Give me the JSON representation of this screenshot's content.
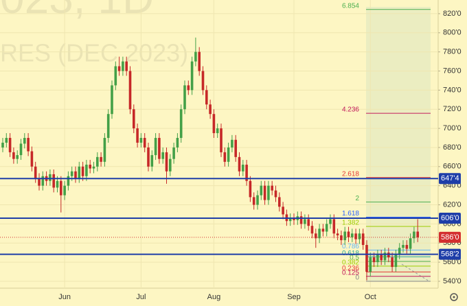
{
  "chart_data": {
    "type": "candlestick",
    "watermark": [
      "023, 1D",
      "RES (DEC 2023)"
    ],
    "categories": [
      null,
      null,
      null,
      null,
      null,
      null,
      null,
      null,
      null,
      null,
      null,
      null,
      null,
      null,
      null,
      null,
      null,
      "Jun",
      null,
      null,
      null,
      null,
      null,
      null,
      null,
      null,
      null,
      null,
      null,
      null,
      null,
      null,
      null,
      null,
      null,
      null,
      null,
      null,
      "Jul",
      null,
      null,
      null,
      null,
      null,
      null,
      null,
      null,
      null,
      null,
      null,
      null,
      null,
      null,
      null,
      null,
      null,
      null,
      null,
      "Aug",
      null,
      null,
      null,
      null,
      null,
      null,
      null,
      null,
      null,
      null,
      null,
      null,
      null,
      null,
      null,
      null,
      null,
      null,
      null,
      null,
      null,
      "Sep",
      null,
      null,
      null,
      null,
      null,
      null,
      null,
      null,
      null,
      null,
      null,
      null,
      null,
      null,
      null,
      null,
      null,
      null,
      null,
      null,
      "Oct",
      null,
      null,
      null,
      null,
      null,
      null,
      null,
      null,
      null,
      null,
      null,
      null,
      null
    ],
    "open": [
      680,
      685,
      690,
      675,
      668,
      672,
      684,
      690,
      676,
      660,
      648,
      640,
      650,
      645,
      652,
      638,
      645,
      630,
      640,
      650,
      655,
      648,
      660,
      650,
      662,
      658,
      660,
      670,
      665,
      690,
      715,
      745,
      765,
      760,
      770,
      760,
      720,
      700,
      685,
      690,
      680,
      660,
      672,
      690,
      668,
      675,
      655,
      668,
      680,
      690,
      720,
      745,
      740,
      770,
      780,
      760,
      740,
      725,
      715,
      695,
      700,
      675,
      665,
      680,
      688,
      670,
      655,
      662,
      645,
      628,
      620,
      630,
      640,
      625,
      640,
      635,
      628,
      618,
      610,
      603,
      606,
      604,
      608,
      600,
      605,
      598,
      590,
      585,
      595,
      592,
      600,
      605,
      590,
      588,
      583,
      592,
      586,
      590,
      584,
      590,
      578,
      550,
      565,
      560,
      568,
      562,
      570,
      565,
      555,
      568,
      575,
      578,
      574,
      585,
      592
    ],
    "high": [
      690,
      695,
      695,
      680,
      677,
      689,
      695,
      695,
      681,
      665,
      653,
      655,
      655,
      657,
      657,
      650,
      650,
      645,
      655,
      660,
      660,
      665,
      665,
      667,
      667,
      665,
      675,
      675,
      695,
      720,
      750,
      770,
      775,
      775,
      775,
      765,
      725,
      705,
      695,
      695,
      685,
      677,
      695,
      695,
      680,
      680,
      673,
      685,
      695,
      725,
      750,
      750,
      775,
      795,
      785,
      765,
      745,
      730,
      720,
      705,
      705,
      680,
      685,
      693,
      693,
      675,
      667,
      667,
      650,
      633,
      635,
      645,
      645,
      645,
      645,
      640,
      633,
      623,
      615,
      611,
      611,
      613,
      613,
      610,
      610,
      603,
      595,
      600,
      600,
      605,
      610,
      610,
      595,
      593,
      597,
      597,
      595,
      595,
      595,
      595,
      583,
      570,
      570,
      573,
      573,
      575,
      575,
      570,
      573,
      580,
      583,
      583,
      590,
      597,
      605
    ],
    "low": [
      675,
      680,
      670,
      663,
      663,
      667,
      679,
      671,
      655,
      643,
      635,
      635,
      640,
      640,
      633,
      633,
      612,
      625,
      635,
      645,
      643,
      643,
      645,
      645,
      653,
      653,
      655,
      660,
      660,
      685,
      710,
      740,
      755,
      755,
      755,
      715,
      695,
      680,
      680,
      675,
      655,
      655,
      667,
      663,
      663,
      642,
      650,
      663,
      675,
      685,
      715,
      735,
      735,
      765,
      755,
      735,
      720,
      710,
      690,
      690,
      670,
      660,
      660,
      675,
      665,
      650,
      650,
      640,
      623,
      615,
      615,
      625,
      620,
      620,
      630,
      623,
      613,
      605,
      598,
      598,
      599,
      599,
      595,
      595,
      593,
      585,
      575,
      580,
      587,
      587,
      595,
      585,
      583,
      578,
      578,
      581,
      581,
      579,
      579,
      573,
      541,
      545,
      555,
      555,
      557,
      557,
      560,
      550,
      550,
      563,
      570,
      569,
      569,
      580,
      581
    ],
    "close": [
      685,
      690,
      675,
      668,
      672,
      684,
      690,
      676,
      660,
      648,
      640,
      650,
      645,
      652,
      638,
      645,
      630,
      640,
      650,
      655,
      648,
      660,
      650,
      662,
      658,
      660,
      670,
      665,
      690,
      715,
      745,
      765,
      760,
      770,
      760,
      720,
      700,
      685,
      690,
      680,
      660,
      672,
      690,
      668,
      675,
      655,
      668,
      680,
      690,
      720,
      745,
      740,
      770,
      780,
      760,
      740,
      725,
      715,
      695,
      700,
      675,
      665,
      680,
      688,
      670,
      655,
      662,
      645,
      628,
      620,
      630,
      640,
      625,
      640,
      635,
      628,
      618,
      610,
      603,
      606,
      604,
      608,
      600,
      605,
      598,
      590,
      585,
      595,
      592,
      600,
      605,
      590,
      588,
      583,
      592,
      586,
      590,
      584,
      590,
      578,
      550,
      565,
      560,
      568,
      562,
      570,
      565,
      555,
      568,
      575,
      578,
      574,
      585,
      592,
      586
    ],
    "up_color": "#43a047",
    "down_color": "#c62828",
    "ylim": [
      532.8,
      834.3
    ],
    "yticks": [
      {
        "value": 540,
        "label": "540'0"
      },
      {
        "value": 560,
        "label": "560'0"
      },
      {
        "value": 580,
        "label": "580'0"
      },
      {
        "value": 600,
        "label": "600'0"
      },
      {
        "value": 620,
        "label": "620'0"
      },
      {
        "value": 640,
        "label": "640'0"
      },
      {
        "value": 660,
        "label": "660'0"
      },
      {
        "value": 680,
        "label": "680'0"
      },
      {
        "value": 700,
        "label": "700'0"
      },
      {
        "value": 720,
        "label": "720'0"
      },
      {
        "value": 740,
        "label": "740'0"
      },
      {
        "value": 760,
        "label": "760'0"
      },
      {
        "value": 780,
        "label": "780'0"
      },
      {
        "value": 800,
        "label": "800'0"
      },
      {
        "value": 820,
        "label": "820'0"
      }
    ],
    "levels": [
      {
        "value": 647.5,
        "label": "647'4"
      },
      {
        "value": 606,
        "label": "606'0"
      },
      {
        "value": 568.25,
        "label": "568'2"
      }
    ],
    "level_color": "#1e3ea8",
    "last_price": {
      "value": 586,
      "label": "586'0",
      "color": "#d32f2f"
    },
    "fib_levels": [
      {
        "label": "6.854",
        "value": 824.4,
        "color": "#4caf50"
      },
      {
        "label": "4.236",
        "value": 715.8,
        "color": "#c2185b"
      },
      {
        "label": "2.618",
        "value": 648.6,
        "color": "#e53935"
      },
      {
        "label": "2",
        "value": 623,
        "color": "#4caf50"
      },
      {
        "label": "1.618",
        "value": 607.1,
        "color": "#2962ff"
      },
      {
        "label": "1.382",
        "value": 597.4,
        "color": "#9ccc00"
      },
      {
        "label": "0.786",
        "value": 572.6,
        "color": "#64b5f6"
      },
      {
        "label": "0.618",
        "value": 565.6,
        "color": "#26a69a"
      },
      {
        "label": "0.5",
        "value": 560.8,
        "color": "#4caf50"
      },
      {
        "label": "0.382",
        "value": 555.9,
        "color": "#9ccc00"
      },
      {
        "label": "0.236",
        "value": 549.8,
        "color": "#e53935"
      },
      {
        "label": "0.125",
        "value": 545.2,
        "color": "#c2185b"
      },
      {
        "label": "0",
        "value": 540,
        "color": "#888888"
      }
    ]
  }
}
